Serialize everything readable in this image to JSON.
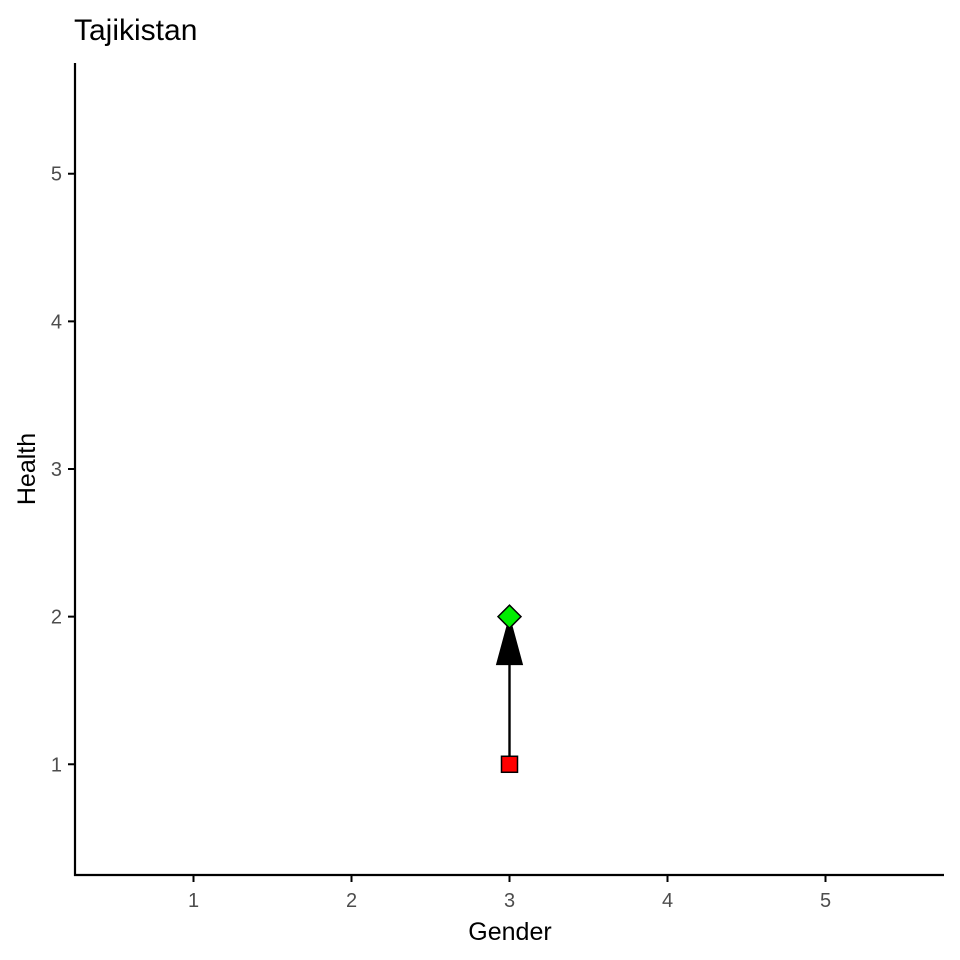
{
  "chart_data": {
    "type": "scatter",
    "title": "Tajikistan",
    "xlabel": "Gender",
    "ylabel": "Health",
    "xlim": [
      0.25,
      5.75
    ],
    "ylim": [
      0.25,
      5.75
    ],
    "x_ticks": [
      1,
      2,
      3,
      4,
      5
    ],
    "y_ticks": [
      1,
      2,
      3,
      4,
      5
    ],
    "grid": false,
    "legend": "none",
    "points": [
      {
        "x": 3,
        "y": 1,
        "shape": "square",
        "color": "#ff0000"
      },
      {
        "x": 3,
        "y": 2,
        "shape": "diamond",
        "color": "#00ee00"
      }
    ],
    "arrows": [
      {
        "from": [
          3,
          1
        ],
        "to": [
          3,
          2
        ],
        "color": "#000000"
      }
    ]
  }
}
